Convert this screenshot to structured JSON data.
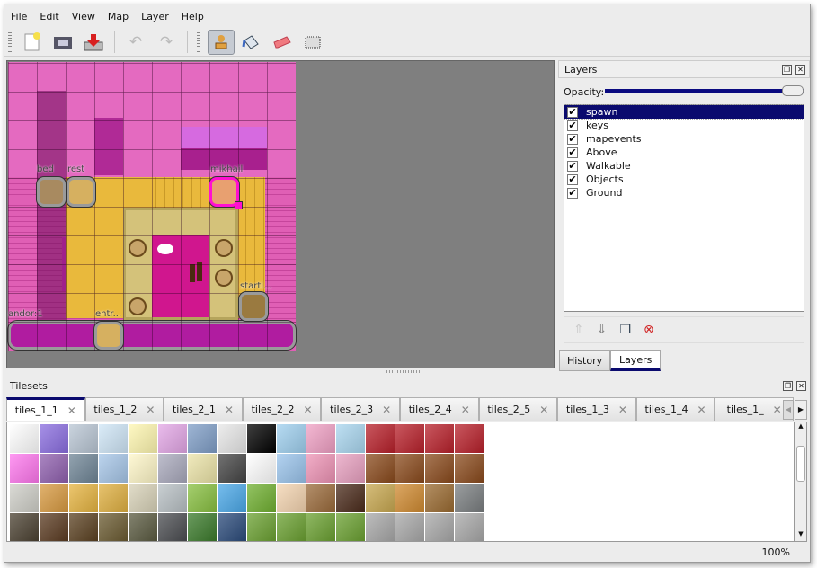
{
  "menu": [
    "File",
    "Edit",
    "View",
    "Map",
    "Layer",
    "Help"
  ],
  "toolbar": {
    "icons": [
      "new-file-icon",
      "open-icon",
      "save-icon",
      "undo-icon",
      "redo-icon",
      "stamp-brush-icon",
      "bucket-fill-icon",
      "eraser-icon",
      "rect-select-icon"
    ],
    "active": "stamp-brush-icon"
  },
  "map": {
    "objects": [
      {
        "name": "bed"
      },
      {
        "name": "rest"
      },
      {
        "name": "mikhail"
      },
      {
        "name": "starti..."
      },
      {
        "name": "andor:1"
      },
      {
        "name": "entr..."
      }
    ]
  },
  "layers_panel": {
    "title": "Layers",
    "opacity_label": "Opacity:",
    "opacity": 1.0,
    "layers": [
      {
        "name": "spawn",
        "visible": true,
        "selected": true
      },
      {
        "name": "keys",
        "visible": true
      },
      {
        "name": "mapevents",
        "visible": true
      },
      {
        "name": "Above",
        "visible": true
      },
      {
        "name": "Walkable",
        "visible": true
      },
      {
        "name": "Objects",
        "visible": true
      },
      {
        "name": "Ground",
        "visible": true
      }
    ],
    "tabs": [
      "History",
      "Layers"
    ],
    "active_tab": "Layers",
    "check": "✔"
  },
  "tilesets": {
    "title": "Tilesets",
    "tabs": [
      "tiles_1_1",
      "tiles_1_2",
      "tiles_2_1",
      "tiles_2_2",
      "tiles_2_3",
      "tiles_2_4",
      "tiles_2_5",
      "tiles_1_3",
      "tiles_1_4",
      "tiles_1_"
    ],
    "active": "tiles_1_1",
    "tile_colors": [
      [
        "#ffffff",
        "#8a6de0",
        "#b9c6d4",
        "#cfe6f7",
        "#fff7b0",
        "#e3a6e6",
        "#7f9ec7",
        "#e8e8e8",
        "#000000",
        "#9fd0ef",
        "#f0a0c4",
        "#a9d6ef",
        "#b8202a",
        "#b8202a",
        "#b8202a",
        "#b8202a"
      ],
      [
        "#ff77ee",
        "#8f5fae",
        "#6f8596",
        "#a6c6e8",
        "#fff7c8",
        "#a9a9bc",
        "#ece4a8",
        "#444444",
        "#ffffff",
        "#9ac4ec",
        "#ee93b5",
        "#e8a0c0",
        "#8a4a1c",
        "#8a4a1c",
        "#8a4a1c",
        "#8a4a1c"
      ],
      [
        "#cfcfc8",
        "#d89a40",
        "#e6b440",
        "#e0b040",
        "#d8d2b8",
        "#b8c0c4",
        "#88c040",
        "#4aa8e8",
        "#70b030",
        "#f4d4b0",
        "#9a6a3a",
        "#4a2a1a",
        "#c8a850",
        "#d08a30",
        "#9a6a30",
        "#7a7e80"
      ],
      [
        "#4a4030",
        "#5a3a20",
        "#5a4020",
        "#6a5a30",
        "#5a5a40",
        "#4a4c50",
        "#3a7a2a",
        "#2a4a7a",
        "#6aa030",
        "#6aa030",
        "#6aa030",
        "#6aa030",
        "#a8a8a8",
        "#a8a8a8",
        "#a8a8a8",
        "#a8a8a8"
      ]
    ]
  },
  "status": {
    "zoom": "100%"
  }
}
